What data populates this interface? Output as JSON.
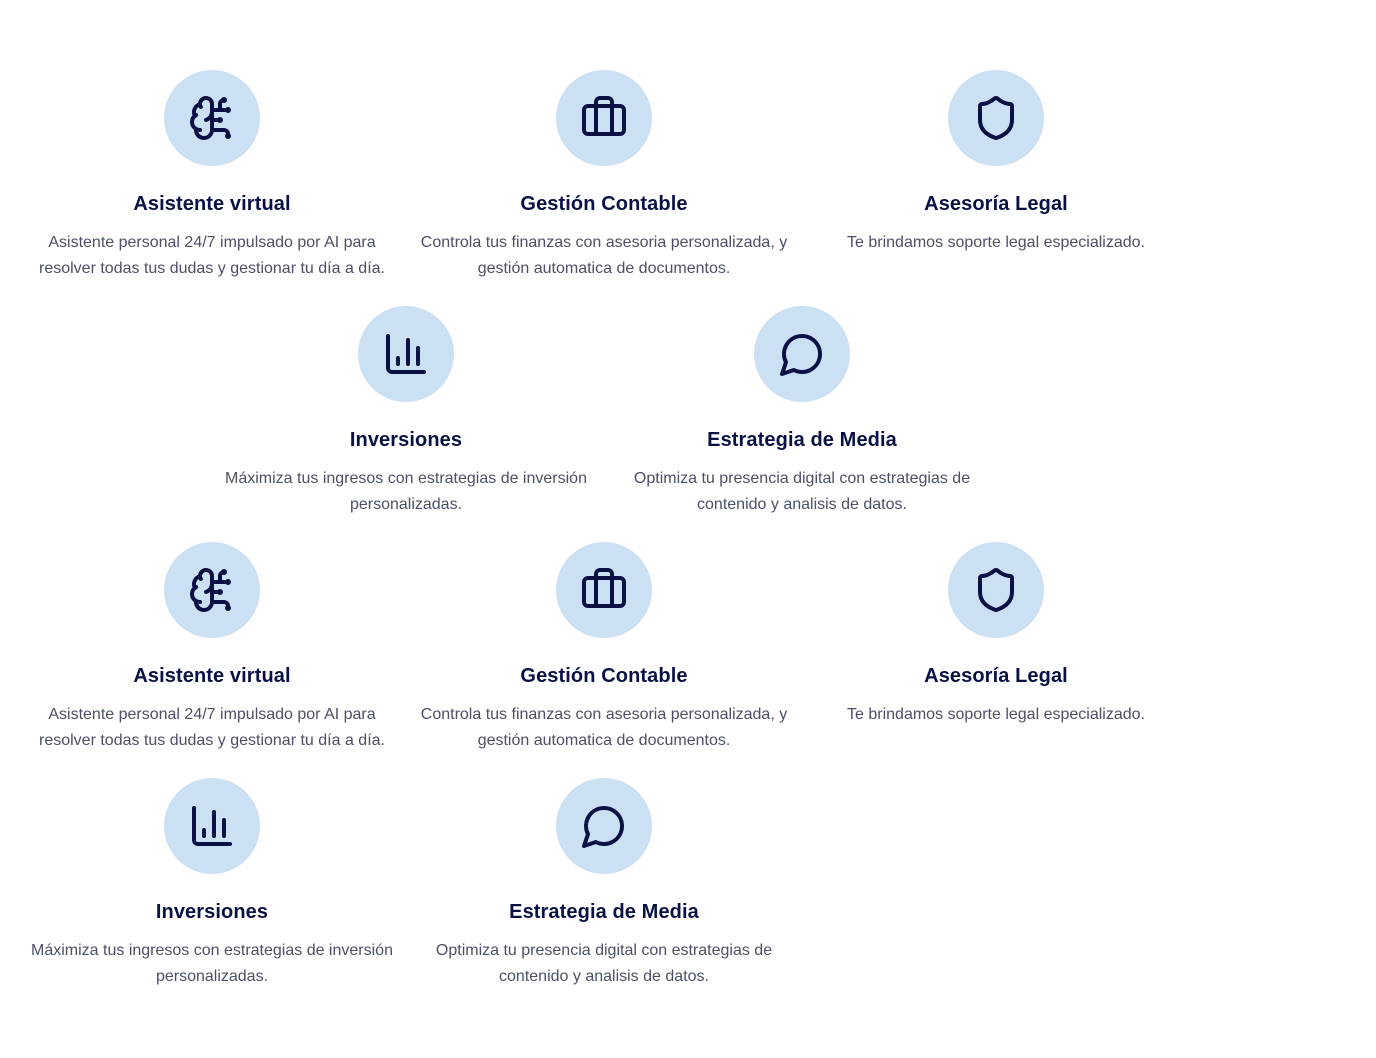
{
  "services": [
    {
      "icon": "brain-circuit-icon",
      "title": "Asistente virtual",
      "description": "Asistente personal 24/7 impulsado por AI para resolver todas tus dudas y gestionar tu día a día."
    },
    {
      "icon": "briefcase-icon",
      "title": "Gestión Contable",
      "description": "Controla tus finanzas con asesoria personalizada, y gestión automatica de documentos."
    },
    {
      "icon": "shield-icon",
      "title": "Asesoría Legal",
      "description": "Te brindamos soporte legal especializado."
    },
    {
      "icon": "bar-chart-icon",
      "title": "Inversiones",
      "description": "Máximiza tus ingresos con estrategias de inversión personalizadas."
    },
    {
      "icon": "chat-bubble-icon",
      "title": "Estrategia de Media",
      "description": "Optimiza tu presencia digital con estrategias de contenido y analisis de datos."
    }
  ],
  "colors": {
    "icon_background": "#cce0f4",
    "icon_stroke": "#0b1144",
    "title": "#0b1144",
    "description": "#4b5066"
  }
}
